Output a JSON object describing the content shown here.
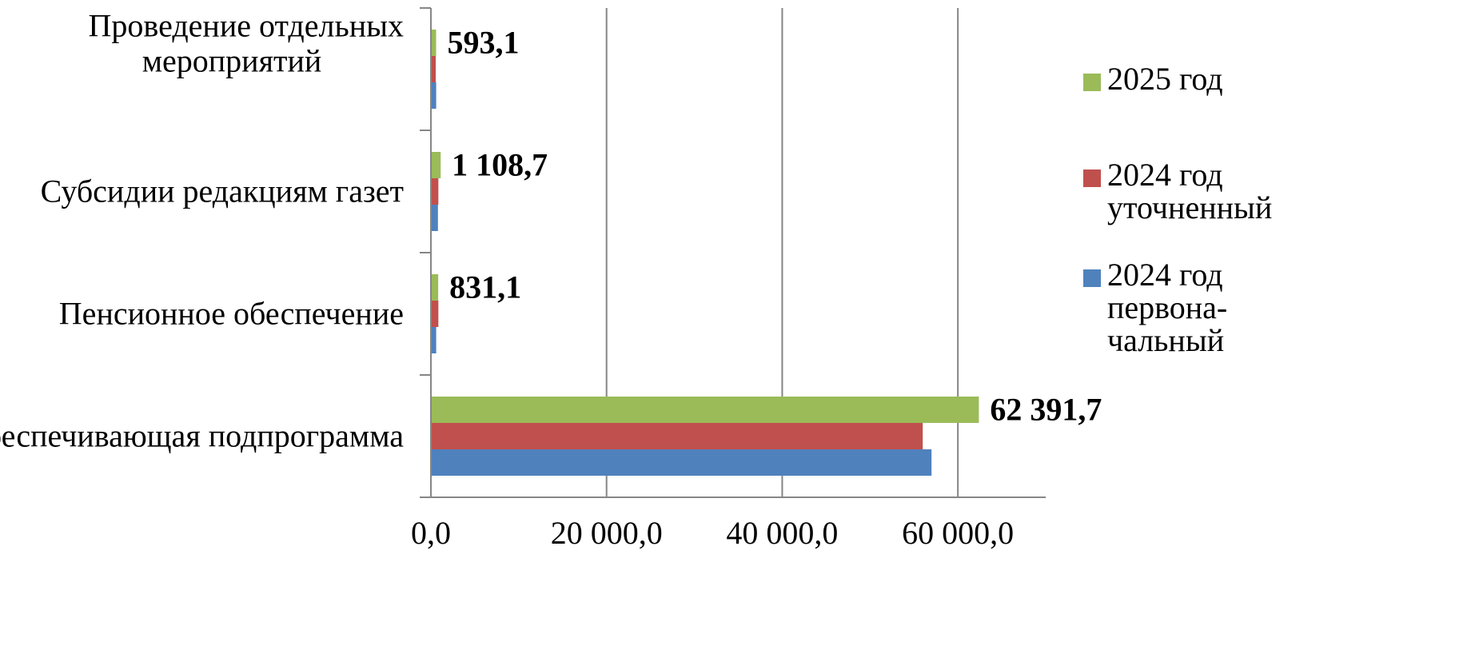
{
  "chart_data": {
    "type": "bar",
    "orientation": "horizontal",
    "categories": [
      [
        "Обеспечивающая подпрограмма"
      ],
      [
        "Пенсионное обеспечение"
      ],
      [
        "Субсидии редакциям газет"
      ],
      [
        "Проведение отдельных",
        "мероприятий"
      ]
    ],
    "series": [
      {
        "name": [
          "2024 год",
          "первона-",
          "чальный"
        ],
        "color": "#4F81BD",
        "values": [
          57000,
          600,
          800,
          600
        ]
      },
      {
        "name": [
          "2024 год",
          "уточненный"
        ],
        "color": "#C0504D",
        "values": [
          56000,
          850,
          850,
          550
        ]
      },
      {
        "name": [
          "2025 год"
        ],
        "color": "#9BBB59",
        "values": [
          62391.7,
          831.1,
          1108.7,
          593.1
        ]
      }
    ],
    "data_labels": [
      "62 391,7",
      "831,1",
      "1 108,7",
      "593,1"
    ],
    "xlim": [
      0,
      70000
    ],
    "xticks": [
      0,
      20000,
      40000,
      60000
    ],
    "xtick_labels": [
      "0,0",
      "20 000,0",
      "40 000,0",
      "60 000,0"
    ],
    "grid": "vertical",
    "legend_position": "right",
    "title": "",
    "xlabel": "",
    "ylabel": ""
  }
}
